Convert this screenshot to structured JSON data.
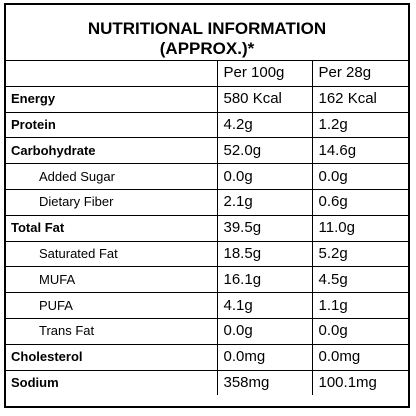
{
  "title": {
    "line1": "NUTRITIONAL INFORMATION",
    "line2": "(APPROX.)*"
  },
  "table": {
    "header": [
      "Per 100g",
      "Per 28g"
    ],
    "rows": [
      {
        "label": "Energy",
        "bold": true,
        "values": [
          "580 Kcal",
          "162 Kcal"
        ]
      },
      {
        "label": "Protein",
        "bold": true,
        "values": [
          "4.2g",
          "1.2g"
        ]
      },
      {
        "label": "Carbohydrate",
        "bold": true,
        "values": [
          "52.0g",
          "14.6g"
        ]
      },
      {
        "label": "Added Sugar",
        "bold": false,
        "values": [
          "0.0g",
          "0.0g"
        ]
      },
      {
        "label": "Dietary Fiber",
        "bold": false,
        "values": [
          "2.1g",
          "0.6g"
        ]
      },
      {
        "label": "Total Fat",
        "bold": true,
        "values": [
          "39.5g",
          "11.0g"
        ]
      },
      {
        "label": "Saturated Fat",
        "bold": false,
        "values": [
          "18.5g",
          "5.2g"
        ]
      },
      {
        "label": "MUFA",
        "bold": false,
        "values": [
          "16.1g",
          "4.5g"
        ]
      },
      {
        "label": "PUFA",
        "bold": false,
        "values": [
          "4.1g",
          "1.1g"
        ]
      },
      {
        "label": "Trans Fat",
        "bold": false,
        "values": [
          "0.0g",
          "0.0g"
        ]
      },
      {
        "label": "Cholesterol",
        "bold": true,
        "values": [
          "0.0mg",
          "0.0mg"
        ]
      },
      {
        "label": "Sodium",
        "bold": true,
        "values": [
          "358mg",
          "100.1mg"
        ]
      }
    ]
  }
}
